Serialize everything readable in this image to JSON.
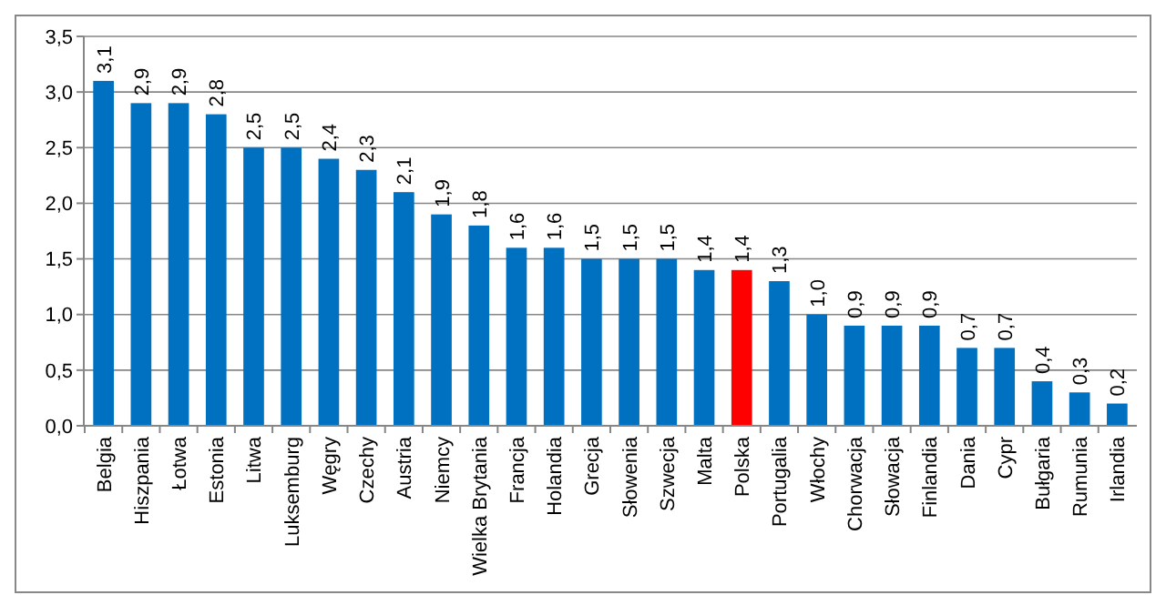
{
  "chart_data": {
    "type": "bar",
    "categories": [
      "Belgia",
      "Hiszpania",
      "Łotwa",
      "Estonia",
      "Litwa",
      "Luksemburg",
      "Węgry",
      "Czechy",
      "Austria",
      "Niemcy",
      "Wielka Brytania",
      "Francja",
      "Holandia",
      "Grecja",
      "Słowenia",
      "Szwecja",
      "Malta",
      "Polska",
      "Portugalia",
      "Włochy",
      "Chorwacja",
      "Słowacja",
      "Finlandia",
      "Dania",
      "Cypr",
      "Bułgaria",
      "Rumunia",
      "Irlandia"
    ],
    "values": [
      3.1,
      2.9,
      2.9,
      2.8,
      2.5,
      2.5,
      2.4,
      2.3,
      2.1,
      1.9,
      1.8,
      1.6,
      1.6,
      1.5,
      1.5,
      1.5,
      1.4,
      1.4,
      1.3,
      1.0,
      0.9,
      0.9,
      0.9,
      0.7,
      0.7,
      0.4,
      0.3,
      0.2
    ],
    "value_labels": [
      "3,1",
      "2,9",
      "2,9",
      "2,8",
      "2,5",
      "2,5",
      "2,4",
      "2,3",
      "2,1",
      "1,9",
      "1,8",
      "1,6",
      "1,6",
      "1,5",
      "1,5",
      "1,5",
      "1,4",
      "1,4",
      "1,3",
      "1,0",
      "0,9",
      "0,9",
      "0,9",
      "0,7",
      "0,7",
      "0,4",
      "0,3",
      "0,2"
    ],
    "colors": [
      "#0070c0",
      "#0070c0",
      "#0070c0",
      "#0070c0",
      "#0070c0",
      "#0070c0",
      "#0070c0",
      "#0070c0",
      "#0070c0",
      "#0070c0",
      "#0070c0",
      "#0070c0",
      "#0070c0",
      "#0070c0",
      "#0070c0",
      "#0070c0",
      "#0070c0",
      "#ff0000",
      "#0070c0",
      "#0070c0",
      "#0070c0",
      "#0070c0",
      "#0070c0",
      "#0070c0",
      "#0070c0",
      "#0070c0",
      "#0070c0",
      "#0070c0"
    ],
    "ylim": [
      0,
      3.5
    ],
    "yticks": [
      {
        "value": 0,
        "label": "0,0"
      },
      {
        "value": 0.5,
        "label": "0,5"
      },
      {
        "value": 1,
        "label": "1,0"
      },
      {
        "value": 1.5,
        "label": "1,5"
      },
      {
        "value": 2,
        "label": "2,0"
      },
      {
        "value": 2.5,
        "label": "2,5"
      },
      {
        "value": 3,
        "label": "3,0"
      },
      {
        "value": 3.5,
        "label": "3,5"
      }
    ],
    "grid": "y"
  }
}
